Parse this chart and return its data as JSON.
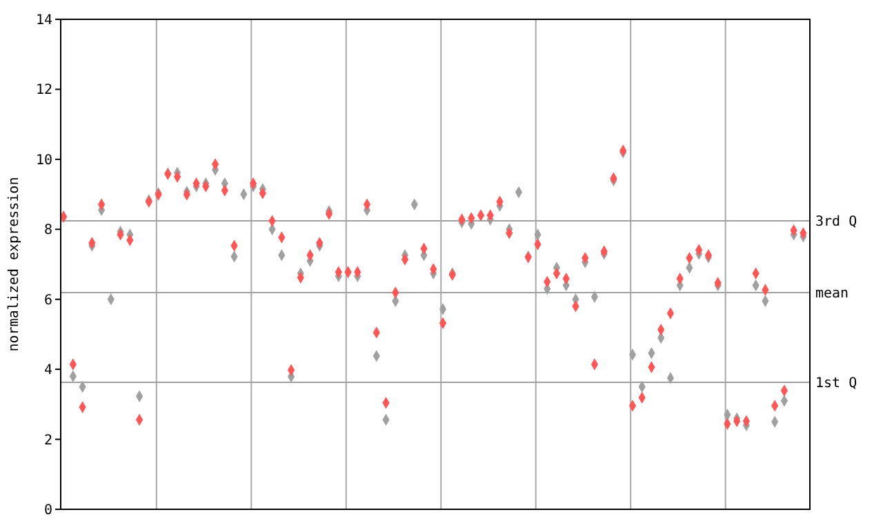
{
  "chart_data": {
    "type": "scatter",
    "ylabel": "normalized expression",
    "categories": [
      null,
      null,
      null,
      null,
      null,
      null,
      null,
      null,
      null,
      null,
      null,
      null,
      null,
      null,
      null,
      null,
      null,
      null,
      null,
      null,
      null,
      null,
      null,
      null,
      null,
      null,
      null,
      null,
      null,
      null,
      null,
      null,
      null,
      null,
      null,
      null,
      null,
      null,
      null,
      null,
      null,
      null,
      null,
      null,
      null,
      null,
      null,
      null,
      null,
      null,
      null,
      null,
      null,
      null,
      null,
      null,
      null,
      null,
      null,
      null,
      null,
      null,
      null,
      null,
      null,
      null,
      null,
      null,
      null,
      null,
      null,
      null,
      null,
      null,
      null,
      null,
      null,
      null,
      null
    ],
    "series": [
      {
        "color": "#a0a0a0",
        "values": [
          8.36,
          3.8,
          3.5,
          7.53,
          8.55,
          6.0,
          7.93,
          7.85,
          3.23,
          8.83,
          9.03,
          9.6,
          9.62,
          9.07,
          9.23,
          9.31,
          9.7,
          9.31,
          7.22,
          9.0,
          9.23,
          9.15,
          8.0,
          7.26,
          3.79,
          6.74,
          7.1,
          7.53,
          8.52,
          6.66,
          6.78,
          6.66,
          8.55,
          4.38,
          2.56,
          5.95,
          7.26,
          8.71,
          7.26,
          6.74,
          5.72,
          6.74,
          8.2,
          8.16,
          null,
          8.28,
          8.67,
          8.0,
          9.06,
          7.22,
          7.85,
          6.3,
          6.9,
          6.4,
          6.0,
          7.06,
          6.07,
          7.3,
          9.4,
          10.2,
          4.42,
          3.5,
          4.46,
          4.9,
          3.75,
          6.4,
          6.9,
          7.3,
          7.2,
          6.4,
          2.7,
          2.6,
          2.4,
          6.4,
          5.95,
          2.5,
          3.1,
          7.85,
          7.8
        ]
      },
      {
        "color": "#ff5555",
        "values": [
          8.36,
          4.14,
          2.92,
          7.61,
          8.71,
          null,
          7.85,
          7.69,
          2.56,
          8.79,
          8.99,
          9.58,
          9.5,
          8.99,
          9.31,
          9.23,
          9.86,
          9.11,
          7.53,
          null,
          9.31,
          9.03,
          8.24,
          7.77,
          3.98,
          6.62,
          7.26,
          7.61,
          8.44,
          6.78,
          6.78,
          6.78,
          8.71,
          5.05,
          3.04,
          6.19,
          7.14,
          null,
          7.45,
          6.86,
          5.32,
          6.7,
          8.28,
          8.32,
          8.4,
          8.4,
          8.79,
          7.89,
          null,
          7.2,
          7.57,
          6.5,
          6.74,
          6.59,
          5.8,
          7.18,
          4.14,
          7.37,
          9.46,
          10.25,
          2.96,
          3.19,
          4.06,
          5.13,
          5.6,
          6.59,
          7.18,
          7.41,
          7.26,
          6.47,
          2.44,
          2.52,
          2.52,
          6.74,
          6.27,
          2.96,
          3.39,
          7.97,
          7.89
        ]
      }
    ],
    "ylim": [
      0,
      14
    ],
    "yticks": [
      0,
      2,
      4,
      6,
      8,
      10,
      12,
      14
    ],
    "ref_lines": [
      {
        "axis": "y",
        "value": 8.24,
        "label": "3rd Q",
        "color": "#a0a0a0"
      },
      {
        "axis": "y",
        "value": 6.19,
        "label": "mean",
        "color": "#a0a0a0"
      },
      {
        "axis": "y",
        "value": 3.63,
        "label": "1st Q",
        "color": "#a0a0a0"
      }
    ],
    "grid": "x",
    "marker": "diamond",
    "tick_labels": "y"
  }
}
